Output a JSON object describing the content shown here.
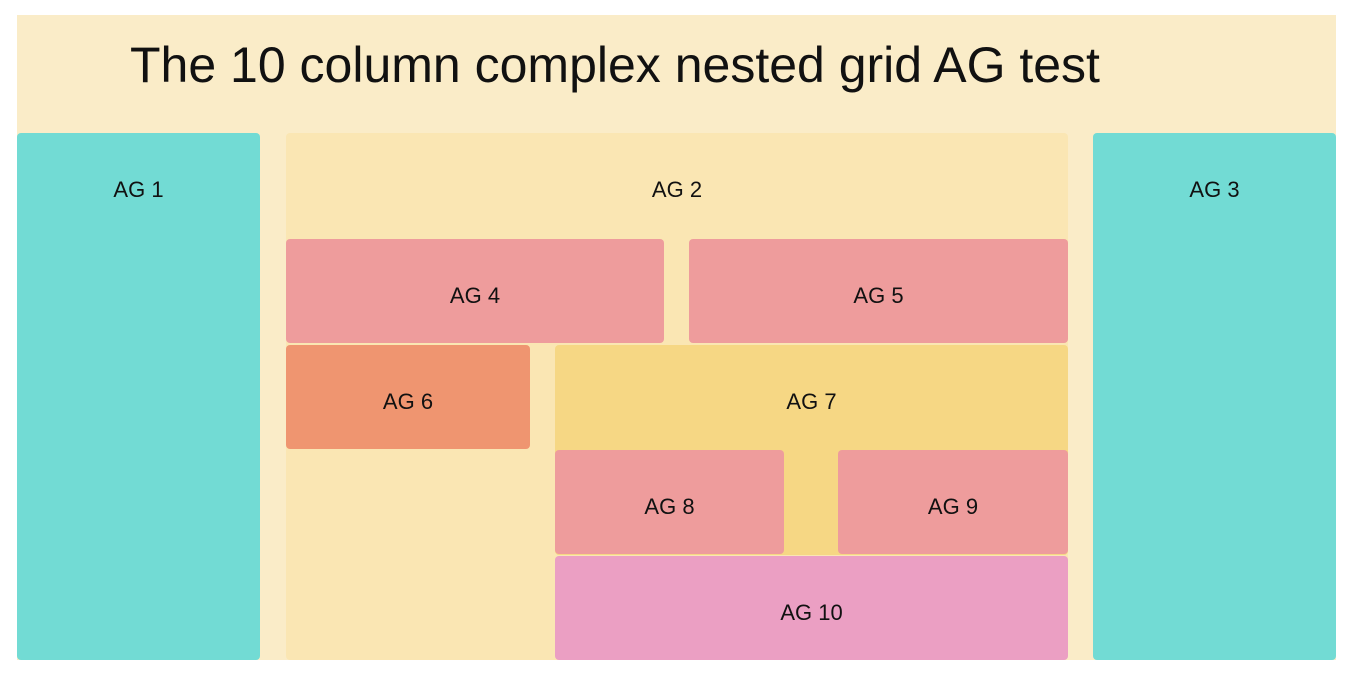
{
  "page": {
    "title": "The 10 column complex nested grid AG test"
  },
  "boxes": {
    "ag1": "AG 1",
    "ag2": "AG 2",
    "ag3": "AG 3",
    "ag4": "AG 4",
    "ag5": "AG 5",
    "ag6": "AG 6",
    "ag7": "AG 7",
    "ag8": "AG 8",
    "ag9": "AG 9",
    "ag10": "AG 10"
  },
  "colors": {
    "background": "#faecc8",
    "teal": "#72dbd4",
    "cream": "#fae6b3",
    "rose": "#ee9c9c",
    "salmon": "#ef9570",
    "gold": "#f6d784",
    "pink": "#eb9fc3"
  }
}
